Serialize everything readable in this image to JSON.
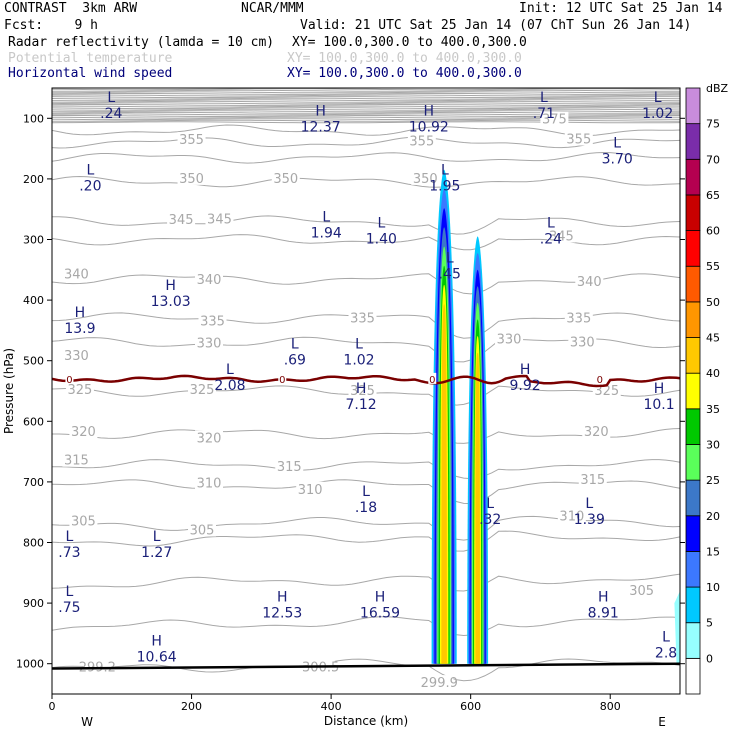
{
  "header": {
    "model": "CONTRAST  3km ARW",
    "center": "NCAR/MMM",
    "init": "Init: 12 UTC Sat 25 Jan 14",
    "fcst": "Fcst:    9 h",
    "valid": "Valid: 21 UTC Sat 25 Jan 14 (07 ChT Sun 26 Jan 14)",
    "fields": [
      {
        "label": "Radar reflectivity (lamda = 10 cm)",
        "xy": "XY= 100.0,300.0 to 400.0,300.0",
        "color": "#000000"
      },
      {
        "label": "Potential temperature",
        "xy": "XY= 100.0,300.0 to 400.0,300.0",
        "color": "#c8c8c8"
      },
      {
        "label": "Horizontal wind speed",
        "xy": "XY= 100.0,300.0 to 400.0,300.0",
        "color": "#00007a"
      }
    ]
  },
  "colors": {
    "theta": "#a8a8a8",
    "wind_label": "#1a1f78",
    "pv_contour": "#7a0000",
    "ground": "#000000"
  },
  "chart_data": {
    "type": "heatmap",
    "xlabel": "Distance (km)",
    "ylabel": "Pressure (hPa)",
    "x_range": [
      0,
      900
    ],
    "y_range_hPa": [
      50,
      1050
    ],
    "x_ticks": [
      0,
      200,
      400,
      600,
      800
    ],
    "y_ticks": [
      100,
      200,
      300,
      400,
      500,
      600,
      700,
      800,
      900,
      1000
    ],
    "x_end_labels": {
      "left": "W",
      "right": "E"
    },
    "colorbar": {
      "unit": "dBZ",
      "levels": [
        0,
        5,
        10,
        15,
        20,
        25,
        30,
        35,
        40,
        45,
        50,
        55,
        60,
        65,
        70,
        75
      ],
      "colors": [
        "#ffffff",
        "#96ffff",
        "#00c8ff",
        "#3c78ff",
        "#0000ff",
        "#3c78c8",
        "#5aff5a",
        "#00c800",
        "#ffff00",
        "#ffc800",
        "#ff9600",
        "#ff5a00",
        "#ff0000",
        "#c80000",
        "#b40050",
        "#7a2daa",
        "#c88cdc"
      ]
    },
    "theta_contours": [
      {
        "value": 375,
        "p": 102,
        "x": 720
      },
      {
        "value": 355,
        "p": 136,
        "x": 200
      },
      {
        "value": 355,
        "p": 138,
        "x": 530
      },
      {
        "value": 355,
        "p": 135,
        "x": 755
      },
      {
        "value": 350,
        "p": 200,
        "x": 200
      },
      {
        "value": 350,
        "p": 200,
        "x": 335
      },
      {
        "value": 350,
        "p": 200,
        "x": 535
      },
      {
        "value": 345,
        "p": 268,
        "x": 185
      },
      {
        "value": 345,
        "p": 267,
        "x": 240
      },
      {
        "value": 345,
        "p": 295,
        "x": 730
      },
      {
        "value": 340,
        "p": 358,
        "x": 35
      },
      {
        "value": 340,
        "p": 367,
        "x": 225
      },
      {
        "value": 340,
        "p": 370,
        "x": 770
      },
      {
        "value": 335,
        "p": 435,
        "x": 230
      },
      {
        "value": 335,
        "p": 430,
        "x": 445
      },
      {
        "value": 335,
        "p": 430,
        "x": 755
      },
      {
        "value": 330,
        "p": 492,
        "x": 35
      },
      {
        "value": 330,
        "p": 472,
        "x": 225
      },
      {
        "value": 330,
        "p": 465,
        "x": 655
      },
      {
        "value": 330,
        "p": 470,
        "x": 760
      },
      {
        "value": 325,
        "p": 548,
        "x": 40
      },
      {
        "value": 325,
        "p": 548,
        "x": 215
      },
      {
        "value": 325,
        "p": 550,
        "x": 445
      },
      {
        "value": 325,
        "p": 550,
        "x": 795
      },
      {
        "value": 320,
        "p": 618,
        "x": 45
      },
      {
        "value": 320,
        "p": 628,
        "x": 225
      },
      {
        "value": 320,
        "p": 618,
        "x": 780
      },
      {
        "value": 315,
        "p": 665,
        "x": 35
      },
      {
        "value": 315,
        "p": 675,
        "x": 340
      },
      {
        "value": 315,
        "p": 697,
        "x": 775
      },
      {
        "value": 310,
        "p": 703,
        "x": 225
      },
      {
        "value": 310,
        "p": 713,
        "x": 370
      },
      {
        "value": 310,
        "p": 757,
        "x": 745
      },
      {
        "value": 305,
        "p": 765,
        "x": 45
      },
      {
        "value": 305,
        "p": 780,
        "x": 215
      },
      {
        "value": 305,
        "p": 880,
        "x": 845
      },
      {
        "value": 299.2,
        "p": 1006,
        "x": 65
      },
      {
        "value": 300.5,
        "p": 1006,
        "x": 385
      },
      {
        "value": 299.9,
        "p": 1032,
        "x": 555
      }
    ],
    "wind_extrema": [
      {
        "type": "L",
        "value": ".24",
        "x": 85,
        "p": 88
      },
      {
        "type": "L",
        "value": ".71",
        "x": 705,
        "p": 88
      },
      {
        "type": "L",
        "value": "1.02",
        "x": 868,
        "p": 88
      },
      {
        "type": "H",
        "value": "12.37",
        "x": 385,
        "p": 110
      },
      {
        "type": "H",
        "value": "10.92",
        "x": 540,
        "p": 110
      },
      {
        "type": "L",
        "value": "3.70",
        "x": 810,
        "p": 163
      },
      {
        "type": "L",
        "value": ".20",
        "x": 55,
        "p": 208
      },
      {
        "type": "L",
        "value": "1.95",
        "x": 563,
        "p": 208
      },
      {
        "type": "L",
        "value": "1.94",
        "x": 393,
        "p": 285
      },
      {
        "type": "L",
        "value": "1.40",
        "x": 472,
        "p": 295
      },
      {
        "type": "L",
        "value": ".24",
        "x": 715,
        "p": 295
      },
      {
        "type": "L",
        "value": ".45",
        "x": 570,
        "p": 353
      },
      {
        "type": "H",
        "value": "13.03",
        "x": 170,
        "p": 398
      },
      {
        "type": "H",
        "value": "13.9",
        "x": 40,
        "p": 443
      },
      {
        "type": "L",
        "value": ".69",
        "x": 348,
        "p": 495
      },
      {
        "type": "L",
        "value": "1.02",
        "x": 440,
        "p": 495
      },
      {
        "type": "H",
        "value": "9.92",
        "x": 678,
        "p": 537
      },
      {
        "type": "L",
        "value": "2.08",
        "x": 255,
        "p": 537
      },
      {
        "type": "H",
        "value": "7.12",
        "x": 443,
        "p": 568
      },
      {
        "type": "H",
        "value": "10.1",
        "x": 870,
        "p": 568
      },
      {
        "type": "L",
        "value": ".18",
        "x": 450,
        "p": 738
      },
      {
        "type": "L",
        "value": ".32",
        "x": 628,
        "p": 758
      },
      {
        "type": "L",
        "value": "1.39",
        "x": 770,
        "p": 758
      },
      {
        "type": "L",
        "value": ".73",
        "x": 25,
        "p": 812
      },
      {
        "type": "L",
        "value": "1.27",
        "x": 150,
        "p": 812
      },
      {
        "type": "L",
        "value": ".75",
        "x": 25,
        "p": 903
      },
      {
        "type": "H",
        "value": "12.53",
        "x": 330,
        "p": 912
      },
      {
        "type": "H",
        "value": "16.59",
        "x": 470,
        "p": 912
      },
      {
        "type": "H",
        "value": "8.91",
        "x": 790,
        "p": 912
      },
      {
        "type": "H",
        "value": "10.64",
        "x": 150,
        "p": 985
      },
      {
        "type": "L",
        "value": "2.8",
        "x": 880,
        "p": 978
      }
    ],
    "pv_zero_line": {
      "label": "0",
      "label_x": [
        25,
        330,
        545,
        785
      ]
    },
    "reflectivity_cells": [
      {
        "x": 562,
        "top": 185,
        "bottom": 1000,
        "half_width": 18,
        "max_dbz": 40
      },
      {
        "x": 610,
        "top": 295,
        "bottom": 1000,
        "half_width": 15,
        "max_dbz": 40
      }
    ]
  }
}
